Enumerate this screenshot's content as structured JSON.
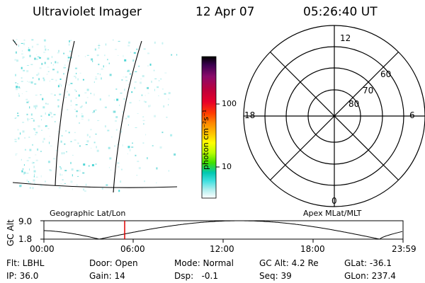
{
  "header": {
    "title": "Ultraviolet Imager",
    "date": "12 Apr 07",
    "time": "05:26:40 UT"
  },
  "colorbar": {
    "label": "photon cm⁻²s⁻¹",
    "ticks": [
      "100",
      "10"
    ],
    "colors": [
      "#000000",
      "#3b0050",
      "#8a0a6a",
      "#c0003a",
      "#e8002a",
      "#ff3c00",
      "#ff8800",
      "#ffc000",
      "#ffff00",
      "#b8ff00",
      "#40e000",
      "#00c8b0",
      "#40e0e0",
      "#b0eeee",
      "#ffffff"
    ]
  },
  "polar": {
    "mlt_labels": {
      "top": "12",
      "left": "18",
      "right": "6",
      "bottom": "0"
    },
    "lat_labels": [
      "60",
      "70",
      "80"
    ]
  },
  "left_panel": {
    "label": "Geographic Lat/Lon"
  },
  "right_panel": {
    "label": "Apex MLat/MLT"
  },
  "altitude_plot": {
    "ylabel": "GC Alt",
    "ymax": "9.0",
    "ymin": "1.8",
    "xticks": [
      "00:00",
      "06:00",
      "12:00",
      "18:00",
      "23:59"
    ],
    "current_time_marker_color": "#dd0000"
  },
  "info": {
    "flt": "Flt: LBHL",
    "door": "Door: Open",
    "mode": "Mode: Normal",
    "gc_alt": "GC Alt: 4.2 Re",
    "glat": "GLat: -36.1",
    "ip": "IP: 36.0",
    "gain": "Gain: 14",
    "dsp": "Dsp:   -0.1",
    "seq": "Seq: 39",
    "glon": "GLon: 237.4"
  }
}
